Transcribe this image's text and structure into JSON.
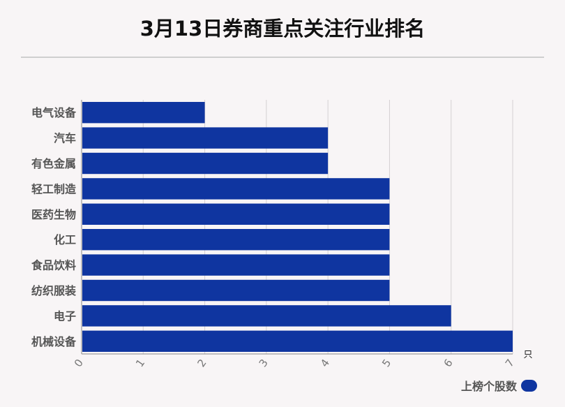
{
  "title": "3月13日券商重点关注行业排名",
  "chart_data": {
    "type": "bar",
    "orientation": "horizontal",
    "title": "3月13日券商重点关注行业排名",
    "categories": [
      "电气设备",
      "汽车",
      "有色金属",
      "轻工制造",
      "医药生物",
      "化工",
      "食品饮料",
      "纺织服装",
      "电子",
      "机械设备"
    ],
    "series": [
      {
        "name": "上榜个股数",
        "values": [
          2,
          4,
          4,
          5,
          5,
          5,
          5,
          5,
          6,
          7
        ]
      }
    ],
    "xlabel": "只",
    "ylabel": "",
    "xlim": [
      0,
      7
    ],
    "xticks": [
      "0",
      "1",
      "2",
      "3",
      "4",
      "5",
      "6",
      "7"
    ],
    "grid": true,
    "legend_position": "bottom-right",
    "bar_color": "#0f35a0"
  },
  "legend": {
    "label": "上榜个股数"
  }
}
